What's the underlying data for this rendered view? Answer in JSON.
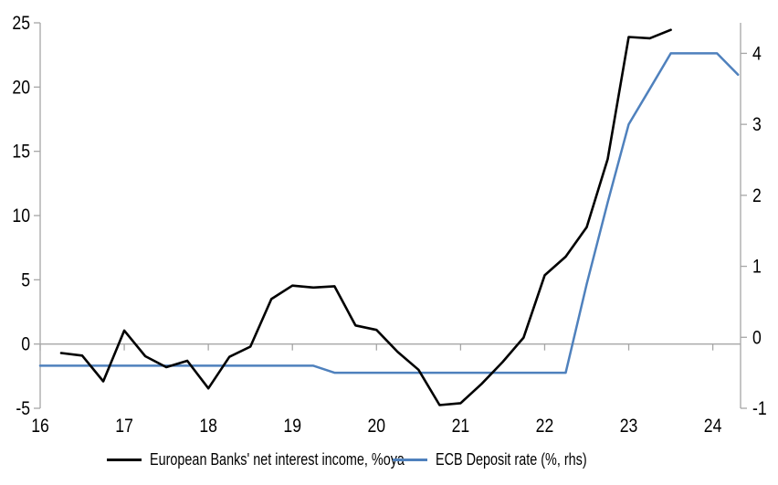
{
  "chart_data": {
    "type": "line",
    "title": "",
    "grid": "zero-line-only",
    "legend_position": "bottom",
    "axis_color": "#A6A6A6",
    "text_color": "#000000",
    "x_axis": {
      "range": [
        16,
        24.33
      ],
      "ticks": [
        16,
        17,
        18,
        19,
        20,
        21,
        22,
        23,
        24
      ]
    },
    "left_axis": {
      "range": [
        -5,
        25
      ],
      "ticks": [
        -5,
        0,
        5,
        10,
        15,
        20,
        25
      ]
    },
    "right_axis": {
      "range": [
        -1,
        4.43
      ],
      "ticks": [
        -1,
        0,
        1,
        2,
        3,
        4
      ]
    },
    "series": [
      {
        "id": "nii-line",
        "name": "European Banks' net interest income, %oya",
        "color": "#000000",
        "axis": "left",
        "width": 2.6,
        "points": [
          [
            16.25,
            -0.7
          ],
          [
            16.5,
            -0.9
          ],
          [
            16.75,
            -2.9
          ],
          [
            17,
            1.05
          ],
          [
            17.25,
            -0.95
          ],
          [
            17.5,
            -1.8
          ],
          [
            17.75,
            -1.3
          ],
          [
            18,
            -3.45
          ],
          [
            18.25,
            -1.0
          ],
          [
            18.5,
            -0.2
          ],
          [
            18.75,
            3.5
          ],
          [
            19,
            4.55
          ],
          [
            19.25,
            4.4
          ],
          [
            19.5,
            4.5
          ],
          [
            19.75,
            1.45
          ],
          [
            20,
            1.1
          ],
          [
            20.25,
            -0.6
          ],
          [
            20.5,
            -2.0
          ],
          [
            20.75,
            -4.75
          ],
          [
            21,
            -4.6
          ],
          [
            21.25,
            -3.1
          ],
          [
            21.5,
            -1.4
          ],
          [
            21.75,
            0.5
          ],
          [
            22,
            5.35
          ],
          [
            22.25,
            6.8
          ],
          [
            22.5,
            9.1
          ],
          [
            22.75,
            14.4
          ],
          [
            23,
            23.9
          ],
          [
            23.25,
            23.8
          ],
          [
            23.5,
            24.45
          ]
        ]
      },
      {
        "id": "ecb-deposit-rate-line",
        "name": "ECB Deposit rate (%, rhs)",
        "color": "#4F81BD",
        "axis": "right",
        "width": 2.5,
        "points": [
          [
            16,
            -0.4
          ],
          [
            19.25,
            -0.4
          ],
          [
            19.5,
            -0.5
          ],
          [
            22.25,
            -0.5
          ],
          [
            22.5,
            0.75
          ],
          [
            22.75,
            1.9
          ],
          [
            23,
            3.0
          ],
          [
            23.25,
            3.5
          ],
          [
            23.5,
            4.0
          ],
          [
            24.05,
            4.0
          ],
          [
            24.3,
            3.7
          ]
        ]
      }
    ]
  }
}
